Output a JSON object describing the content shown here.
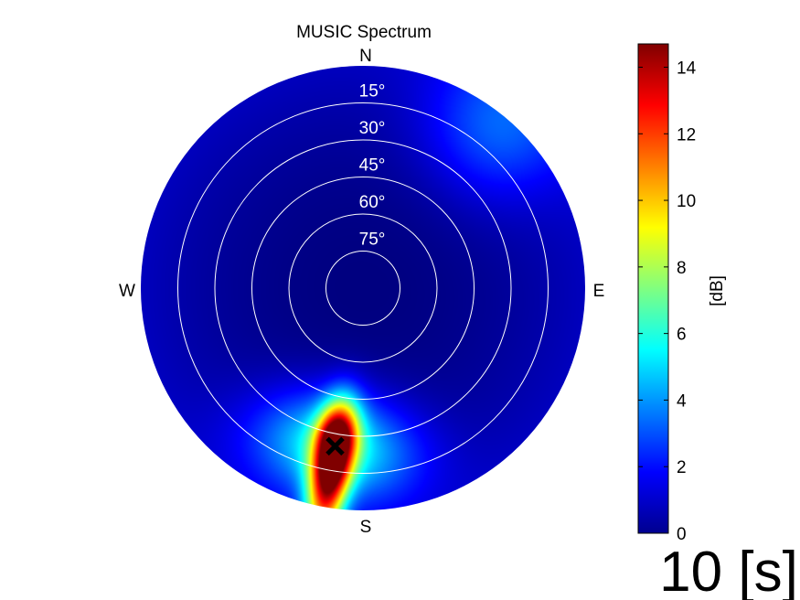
{
  "chart_data": {
    "type": "heatmap",
    "projection": "polar-sky-map",
    "title": "MUSIC Spectrum",
    "compass": {
      "north": "N",
      "east": "E",
      "south": "S",
      "west": "W"
    },
    "elevation_rings": [
      {
        "deg": 15,
        "label": "15°"
      },
      {
        "deg": 30,
        "label": "30°"
      },
      {
        "deg": 45,
        "label": "45°"
      },
      {
        "deg": 60,
        "label": "60°"
      },
      {
        "deg": 75,
        "label": "75°"
      }
    ],
    "elevation_range_deg": [
      0,
      90
    ],
    "peak": {
      "azimuth_deg": 190,
      "elevation_deg": 25,
      "value_db": 14.7,
      "marker": "x"
    },
    "secondary_ridge": {
      "azimuth_deg": 40,
      "elevation_deg": 5,
      "value_db": 2.5
    },
    "colorbar": {
      "label": "[dB]",
      "colormap": "jet",
      "range": [
        0,
        14.7
      ],
      "ticks": [
        0,
        2,
        4,
        6,
        8,
        10,
        12,
        14
      ],
      "tick_labels": [
        "0",
        "2",
        "4",
        "6",
        "8",
        "10",
        "12",
        "14"
      ]
    },
    "timestamp": "10 [s]"
  },
  "colors": {
    "ring": "#ffffff",
    "marker": "#000000",
    "text": "#000000"
  }
}
